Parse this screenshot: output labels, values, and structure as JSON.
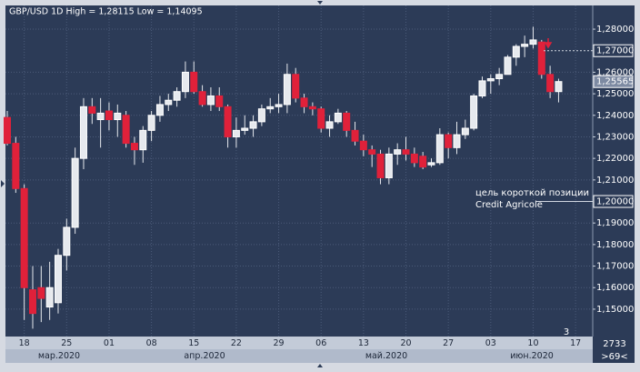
{
  "chart_data": {
    "type": "candlestick",
    "title": "GBP/USD 1D High = 1,28115 Low = 1,14095",
    "categories": [
      null,
      null,
      "18",
      null,
      null,
      null,
      null,
      "25",
      null,
      null,
      null,
      null,
      "01",
      null,
      null,
      null,
      null,
      "08",
      null,
      null,
      null,
      null,
      "15",
      null,
      null,
      null,
      null,
      "22",
      null,
      null,
      null,
      null,
      "29",
      null,
      null,
      null,
      null,
      "06",
      null,
      null,
      null,
      null,
      "13",
      null,
      null,
      null,
      null,
      "20",
      null,
      null,
      null,
      null,
      "27",
      null,
      null,
      null,
      null,
      "03",
      null,
      null,
      null,
      null,
      "10",
      null,
      null,
      null,
      null,
      "17"
    ],
    "open": [
      1.239,
      1.227,
      1.206,
      1.159,
      1.16,
      1.151,
      1.153,
      1.175,
      1.188,
      1.22,
      1.244,
      1.238,
      1.242,
      1.238,
      1.24,
      1.227,
      1.224,
      1.233,
      1.24,
      1.245,
      1.247,
      1.251,
      1.26,
      1.251,
      1.245,
      1.249,
      1.244,
      1.23,
      1.233,
      1.234,
      1.237,
      1.243,
      1.244,
      1.245,
      1.259,
      1.248,
      1.244,
      1.243,
      1.234,
      1.237,
      1.241,
      1.233,
      1.228,
      1.224,
      1.222,
      1.211,
      1.222,
      1.224,
      1.222,
      1.221,
      1.217,
      1.218,
      1.231,
      1.225,
      1.231,
      1.234,
      1.249,
      1.256,
      1.257,
      1.259,
      1.267,
      1.272,
      1.273,
      1.274,
      1.259,
      1.251,
      null,
      null
    ],
    "high": [
      1.242,
      1.23,
      1.208,
      1.17,
      1.17,
      1.172,
      1.178,
      1.192,
      1.225,
      1.248,
      1.248,
      1.248,
      1.246,
      1.245,
      1.242,
      1.23,
      1.235,
      1.242,
      1.249,
      1.25,
      1.253,
      1.265,
      1.265,
      1.254,
      1.253,
      1.253,
      1.245,
      1.239,
      1.24,
      1.24,
      1.245,
      1.248,
      1.25,
      1.264,
      1.262,
      1.25,
      1.246,
      1.244,
      1.24,
      1.243,
      1.242,
      1.237,
      1.231,
      1.226,
      1.224,
      1.225,
      1.227,
      1.23,
      1.225,
      1.223,
      1.22,
      1.234,
      1.232,
      1.237,
      1.238,
      1.25,
      1.258,
      1.259,
      1.262,
      1.268,
      1.273,
      1.277,
      1.28115,
      1.275,
      1.263,
      1.257,
      null,
      null
    ],
    "low": [
      1.226,
      1.204,
      1.145,
      1.14095,
      1.144,
      1.145,
      1.148,
      1.168,
      1.185,
      1.215,
      1.236,
      1.225,
      1.233,
      1.23,
      1.225,
      1.217,
      1.218,
      1.228,
      1.237,
      1.242,
      1.244,
      1.248,
      1.25,
      1.244,
      1.242,
      1.242,
      1.225,
      1.225,
      1.231,
      1.23,
      1.235,
      1.241,
      1.241,
      1.241,
      1.246,
      1.241,
      1.24,
      1.232,
      1.23,
      1.236,
      1.23,
      1.226,
      1.221,
      1.216,
      1.208,
      1.208,
      1.217,
      1.219,
      1.216,
      1.215,
      1.216,
      1.217,
      1.22,
      1.222,
      1.229,
      1.233,
      1.248,
      1.25,
      1.254,
      1.259,
      1.263,
      1.267,
      1.271,
      1.257,
      1.248,
      1.246,
      null,
      null
    ],
    "close": [
      1.227,
      1.206,
      1.16,
      1.148,
      1.155,
      1.16,
      1.175,
      1.188,
      1.22,
      1.244,
      1.241,
      1.241,
      1.238,
      1.241,
      1.227,
      1.224,
      1.233,
      1.24,
      1.245,
      1.247,
      1.251,
      1.26,
      1.251,
      1.245,
      1.249,
      1.244,
      1.23,
      1.233,
      1.234,
      1.237,
      1.243,
      1.244,
      1.245,
      1.259,
      1.248,
      1.244,
      1.243,
      1.234,
      1.237,
      1.241,
      1.233,
      1.228,
      1.224,
      1.222,
      1.211,
      1.222,
      1.224,
      1.222,
      1.218,
      1.216,
      1.218,
      1.231,
      1.225,
      1.231,
      1.234,
      1.249,
      1.256,
      1.257,
      1.259,
      1.267,
      1.272,
      1.273,
      1.275,
      1.259,
      1.251,
      1.25565,
      null,
      null
    ],
    "up_color": "#e6e9ee",
    "down_color": "#e0213a",
    "ylim": [
      1.1373,
      1.291
    ],
    "yticks": [
      {
        "value": 1.15,
        "label": "1,15000"
      },
      {
        "value": 1.16,
        "label": "1,16000"
      },
      {
        "value": 1.17,
        "label": "1,17000"
      },
      {
        "value": 1.18,
        "label": "1,18000"
      },
      {
        "value": 1.19,
        "label": "1,19000"
      },
      {
        "value": 1.21,
        "label": "1,21000"
      },
      {
        "value": 1.22,
        "label": "1,22000"
      },
      {
        "value": 1.23,
        "label": "1,23000"
      },
      {
        "value": 1.24,
        "label": "1,24000"
      },
      {
        "value": 1.25,
        "label": "1,25000"
      },
      {
        "value": 1.26,
        "label": "1,26000"
      },
      {
        "value": 1.28,
        "label": "1,28000"
      }
    ],
    "levels": [
      {
        "value": 1.27,
        "label": "1,27000"
      },
      {
        "value": 1.2,
        "label": "1,20000"
      }
    ],
    "last_price": {
      "value": 1.25565,
      "label": "1,25565"
    },
    "annotation": [
      "цель короткой позиции",
      "Credit Agricole"
    ],
    "months": [
      "мар.2020",
      "апр.2020",
      "май.2020",
      "июн.2020"
    ],
    "grid": true,
    "note": "3",
    "corner_labels": [
      "2733",
      ">69<"
    ]
  }
}
